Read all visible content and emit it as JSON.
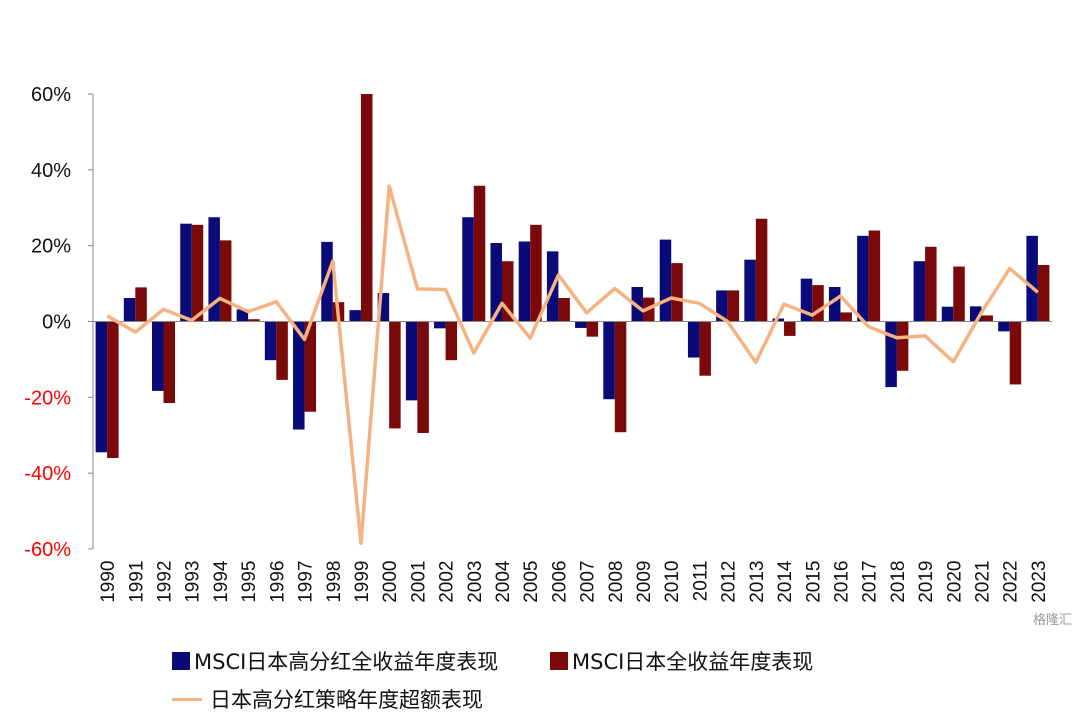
{
  "chart_data": {
    "type": "bar",
    "categories": [
      "1990",
      "1991",
      "1992",
      "1993",
      "1994",
      "1995",
      "1996",
      "1997",
      "1998",
      "1999",
      "2000",
      "2001",
      "2002",
      "2003",
      "2004",
      "2005",
      "2006",
      "2007",
      "2008",
      "2009",
      "2010",
      "2011",
      "2012",
      "2013",
      "2014",
      "2015",
      "2016",
      "2017",
      "2018",
      "2019",
      "2020",
      "2021",
      "2022",
      "2023"
    ],
    "series": [
      {
        "name": "MSCI日本高分红全收益年度表现",
        "kind": "bar",
        "color": "#0a0a78",
        "values": [
          -34.5,
          6.2,
          -18.3,
          25.8,
          27.5,
          3.2,
          -10.2,
          -28.5,
          21.0,
          3.0,
          7.5,
          -20.8,
          -1.8,
          27.5,
          20.7,
          21.1,
          18.5,
          -1.7,
          -20.5,
          9.1,
          21.6,
          -9.5,
          8.2,
          16.3,
          0.8,
          11.3,
          9.1,
          22.6,
          -17.3,
          15.9,
          3.9,
          4.0,
          -2.6,
          22.6
        ]
      },
      {
        "name": "MSCI日本全收益年度表现",
        "kind": "bar",
        "color": "#7a0a0a",
        "values": [
          -36.0,
          9.0,
          -21.5,
          25.5,
          21.4,
          0.6,
          -15.4,
          -23.8,
          5.1,
          60.0,
          -28.2,
          -29.4,
          -10.2,
          35.8,
          15.9,
          25.5,
          6.2,
          -4.0,
          -29.2,
          6.3,
          15.4,
          -14.3,
          8.2,
          27.1,
          -3.8,
          9.6,
          2.4,
          24.0,
          -13.0,
          19.7,
          14.5,
          1.6,
          -16.6,
          14.9
        ]
      },
      {
        "name": "日本高分红策略年度超额表现",
        "kind": "line",
        "color": "#f5b384",
        "values": [
          1.5,
          -2.8,
          3.2,
          0.3,
          6.1,
          2.6,
          5.2,
          -4.7,
          15.9,
          -58.5,
          35.7,
          8.6,
          8.4,
          -8.3,
          4.8,
          -4.4,
          12.3,
          2.3,
          8.7,
          2.8,
          6.2,
          4.8,
          0.0,
          -10.8,
          4.6,
          1.7,
          6.7,
          -1.4,
          -4.3,
          -3.8,
          -10.6,
          2.4,
          14.0,
          7.7
        ]
      }
    ],
    "ylim": [
      -60,
      60
    ],
    "yticks": [
      -60,
      -40,
      -20,
      0,
      20,
      40,
      60
    ],
    "ytick_labels": [
      "-60%",
      "-40%",
      "-20%",
      "0%",
      "20%",
      "40%",
      "60%"
    ],
    "negative_tick_color": "#ff0000",
    "grid": false,
    "legend_position": "top-left",
    "xlabel": "",
    "ylabel": "",
    "title": ""
  },
  "watermark": "格隆汇"
}
